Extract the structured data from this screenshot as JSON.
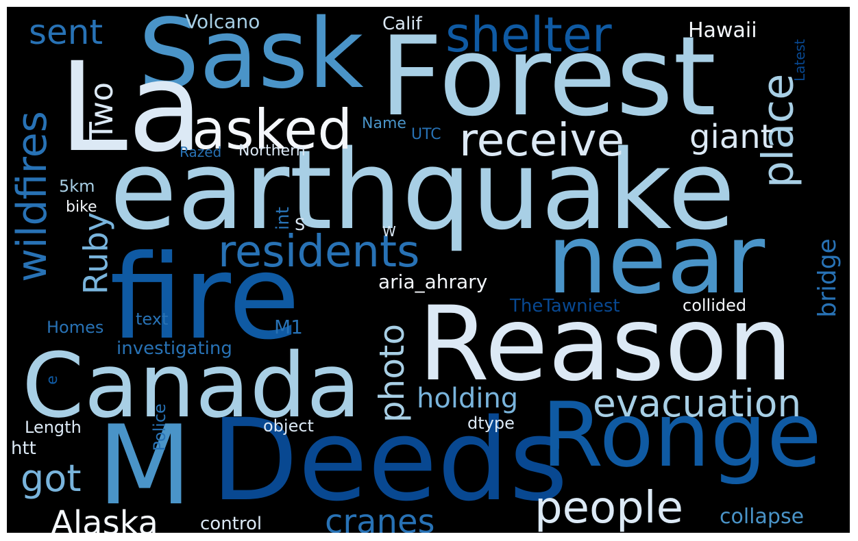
{
  "palette": {
    "background": "#000000",
    "c1": "#dce9f5",
    "c2": "#a8cfe5",
    "c3": "#79b4dc",
    "c4": "#4a94c8",
    "c5": "#2872b5",
    "c6": "#0f5aa3",
    "c7": "#084891",
    "white": "#f4f7fb"
  },
  "words": {
    "earthquake": "earthquake",
    "fire": "fire",
    "reason": "Reason",
    "deeds": "Deeds",
    "forest": "Forest",
    "sask": "Sask",
    "la": "La",
    "canada": "Canada",
    "ronge": "Ronge",
    "m": "M",
    "near": "near",
    "asked": "asked",
    "receive": "receive",
    "shelter": "shelter",
    "residents": "residents",
    "evacuation": "evacuation",
    "people": "people",
    "place": "place",
    "wildfires": "wildfires",
    "sent": "sent",
    "ruby": "Ruby",
    "two": "Two",
    "photo": "photo",
    "giant": "giant",
    "hawaii": "Hawaii",
    "volcano": "Volcano",
    "calif": "Calif",
    "bridge": "bridge",
    "alaska": "Alaska",
    "cranes": "cranes",
    "collapse": "collapse",
    "holding": "holding",
    "got": "got",
    "control": "control",
    "aria_ahrary": "aria_ahrary",
    "the_tawniest": "TheTawniest",
    "collided": "collided",
    "investigating": "investigating",
    "m1": "M1",
    "text": "text",
    "homes": "Homes",
    "police": "Police",
    "length": "Length",
    "object": "object",
    "dtype": "dtype",
    "htt": "htt",
    "e": "e",
    "km5": "5km",
    "bike": "bike",
    "int": "int",
    "s": "S",
    "w": "W",
    "name": "Name",
    "utc": "UTC",
    "razed": "Razed",
    "northern": "Northern",
    "latest": "Latest"
  }
}
